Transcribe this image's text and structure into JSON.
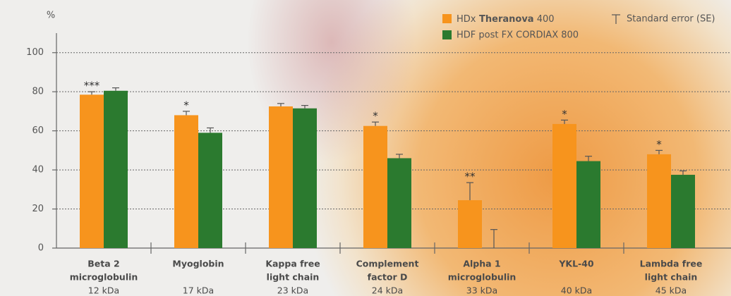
{
  "chart_data": {
    "type": "bar",
    "y_unit": "%",
    "categories": [
      [
        "Beta 2",
        "microglobulin"
      ],
      [
        "Myoglobin"
      ],
      [
        "Kappa free",
        "light chain"
      ],
      [
        "Complement",
        "factor D"
      ],
      [
        "Alpha 1",
        "microglobulin"
      ],
      [
        "YKL-40"
      ],
      [
        "Lambda free",
        "light chain"
      ]
    ],
    "category_sizes": [
      "12 kDa",
      "17 kDa",
      "23 kDa",
      "24 kDa",
      "33 kDa",
      "40 kDa",
      "45 kDa"
    ],
    "series": [
      {
        "name": "HDx Theranova 400",
        "color": "#f7941d",
        "values": [
          78.5,
          68,
          72.5,
          62.5,
          24.5,
          63.5,
          48
        ],
        "errors": [
          1.5,
          2,
          1.5,
          2,
          9,
          2,
          2
        ],
        "annotations": [
          "***",
          "*",
          null,
          "*",
          "**",
          "*",
          "*"
        ]
      },
      {
        "name": "HDF post FX CORDIAX 800",
        "color": "#2b7a2f",
        "values": [
          80.5,
          59,
          71.5,
          46,
          0,
          44.5,
          37.5
        ],
        "errors": [
          1.5,
          2.5,
          1.5,
          2,
          9.5,
          2.5,
          2
        ]
      }
    ],
    "error_label": "Standard error (SE)",
    "ylim": [
      0,
      110
    ],
    "yticks": [
      0,
      20,
      40,
      60,
      80,
      100
    ],
    "grid": true
  }
}
